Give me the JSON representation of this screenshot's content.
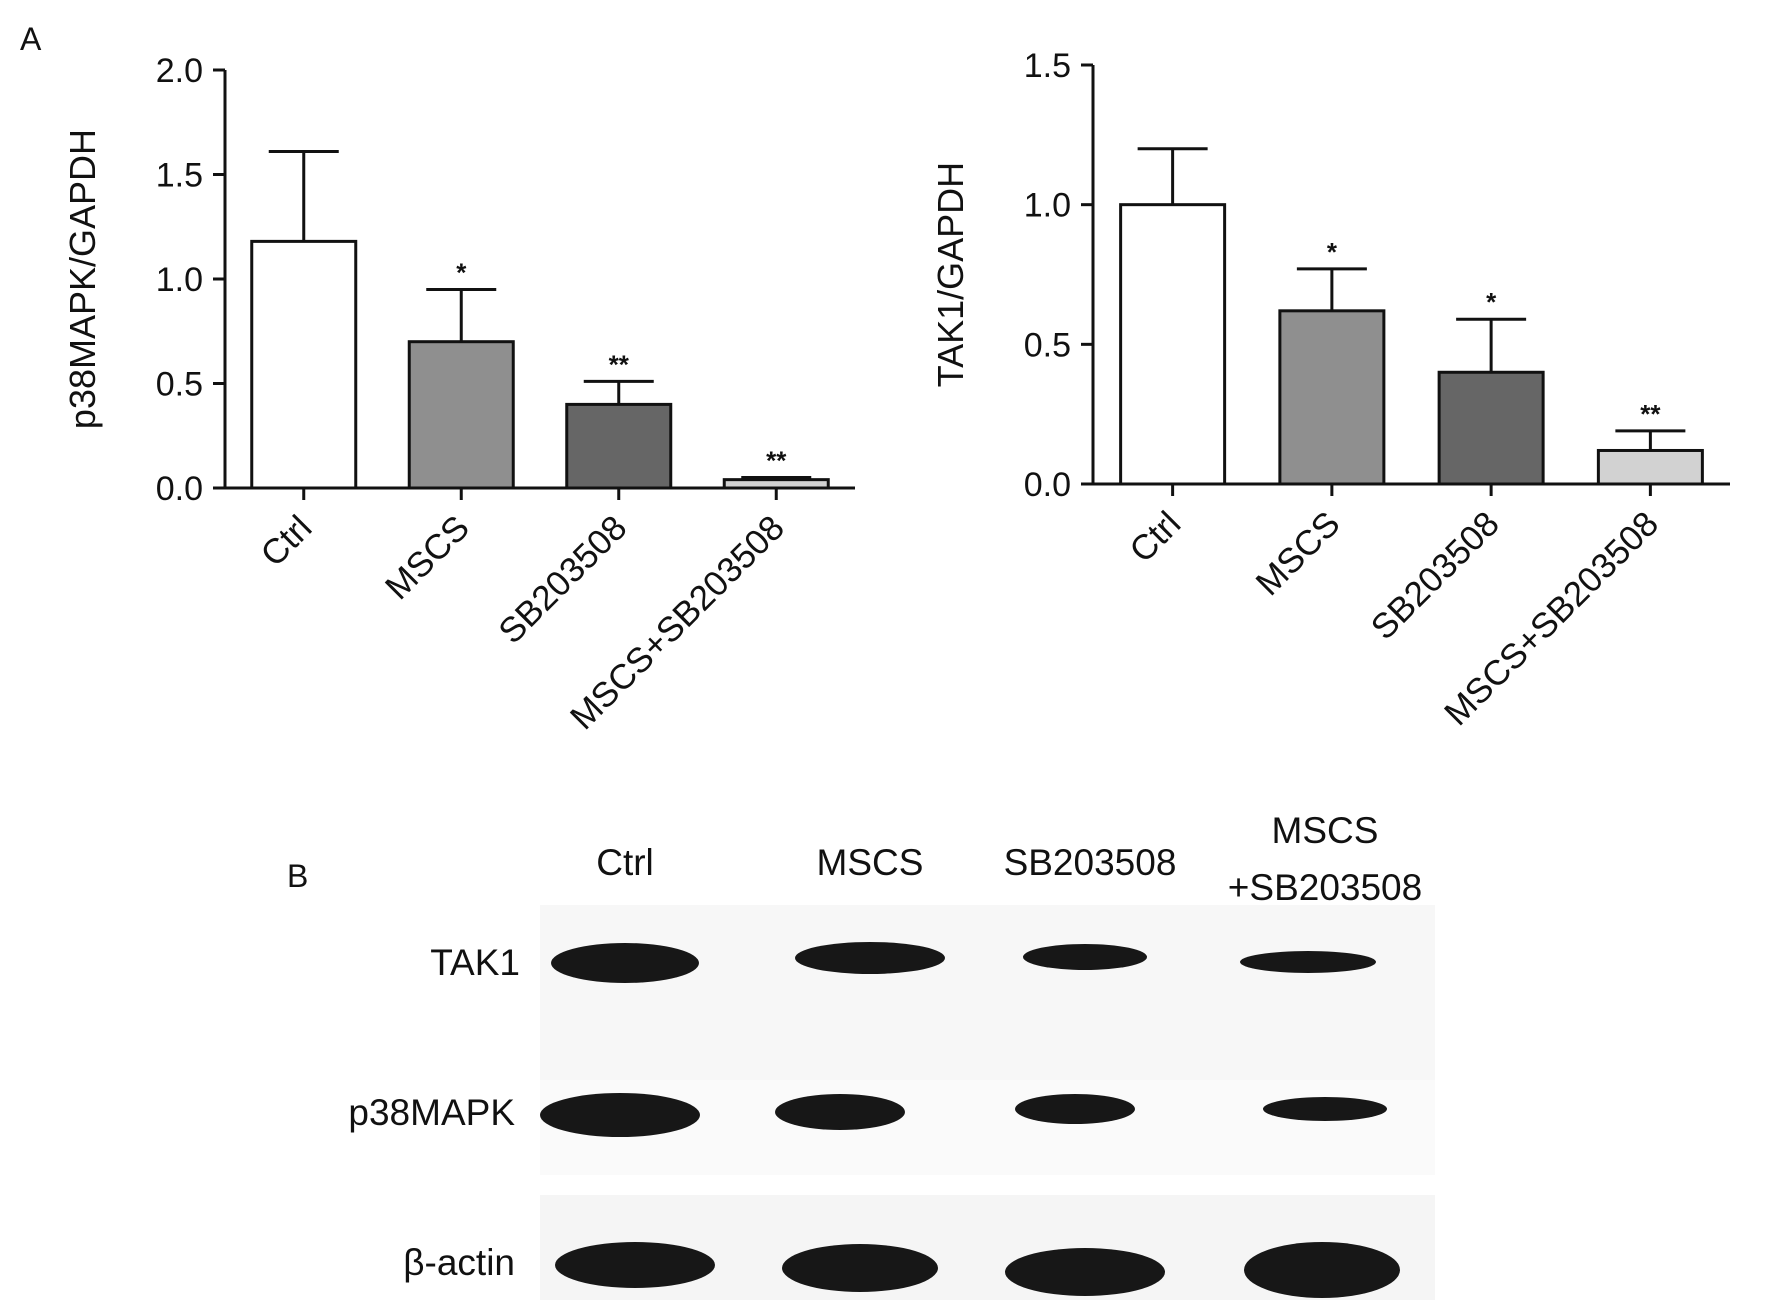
{
  "panels": {
    "a": "A",
    "b": "B"
  },
  "chart_data": [
    {
      "type": "bar",
      "title": "",
      "xlabel": "",
      "ylabel": "p38MAPK/GAPDH",
      "ylim": [
        0,
        2.0
      ],
      "yticks": [
        "0.0",
        "0.5",
        "1.0",
        "1.5",
        "2.0"
      ],
      "categories": [
        "Ctrl",
        "MSCS",
        "SB203508",
        "MSCS+SB203508"
      ],
      "values": [
        1.18,
        0.7,
        0.4,
        0.04
      ],
      "errors": [
        0.43,
        0.25,
        0.11,
        0.01
      ],
      "significance": [
        "",
        "*",
        "**",
        "**"
      ],
      "bar_colors": [
        "#ffffff",
        "#8f8f8f",
        "#666666",
        "#d2d2d2"
      ],
      "grid": false
    },
    {
      "type": "bar",
      "title": "",
      "xlabel": "",
      "ylabel": "TAK1/GAPDH",
      "ylim": [
        0,
        1.5
      ],
      "yticks": [
        "0.0",
        "0.5",
        "1.0",
        "1.5"
      ],
      "categories": [
        "Ctrl",
        "MSCS",
        "SB203508",
        "MSCS+SB203508"
      ],
      "values": [
        1.0,
        0.62,
        0.4,
        0.12
      ],
      "errors": [
        0.2,
        0.15,
        0.19,
        0.07
      ],
      "significance": [
        "",
        "*",
        "*",
        "**"
      ],
      "bar_colors": [
        "#ffffff",
        "#8f8f8f",
        "#666666",
        "#d2d2d2"
      ],
      "grid": false
    }
  ],
  "western_blot": {
    "lanes": [
      "Ctrl",
      "MSCS",
      "SB203508",
      "MSCS",
      "+SB203508"
    ],
    "rows": [
      "TAK1",
      "p38MAPK",
      "β-actin"
    ],
    "band_color": "#171717",
    "membrane_color": "#f7f7f7"
  }
}
